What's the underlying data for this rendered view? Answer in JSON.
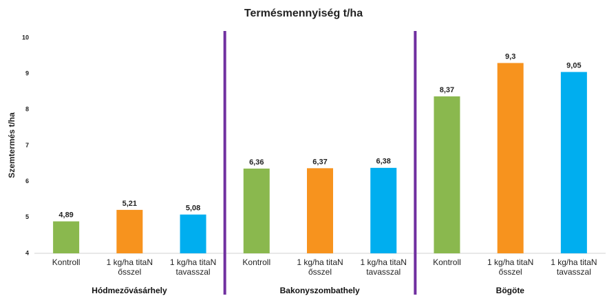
{
  "chart_data": {
    "type": "bar",
    "title": "Termésmennyiség t/ha",
    "y_label": "Szemtermés t/ha",
    "groups": [
      "Hódmezővásárhely",
      "Bakonyszombathely",
      "Bögöte"
    ],
    "categories": [
      "Kontroll",
      "1 kg/ha titaN ősszel",
      "1 kg/ha titaN tavasszal"
    ],
    "colors": [
      "#8ab84e",
      "#f7931e",
      "#00aeef"
    ],
    "values": [
      [
        4.89,
        5.21,
        5.08
      ],
      [
        6.36,
        6.37,
        6.38
      ],
      [
        8.37,
        9.3,
        9.05
      ]
    ],
    "value_labels": [
      [
        "4,89",
        "5,21",
        "5,08"
      ],
      [
        "6,36",
        "6,37",
        "6,38"
      ],
      [
        "8,37",
        "9,3",
        "9,05"
      ]
    ],
    "ylim": [
      4,
      10
    ],
    "yticks": [
      4,
      5,
      6,
      7,
      8,
      9,
      10
    ],
    "separator_color": "#7030a0"
  }
}
